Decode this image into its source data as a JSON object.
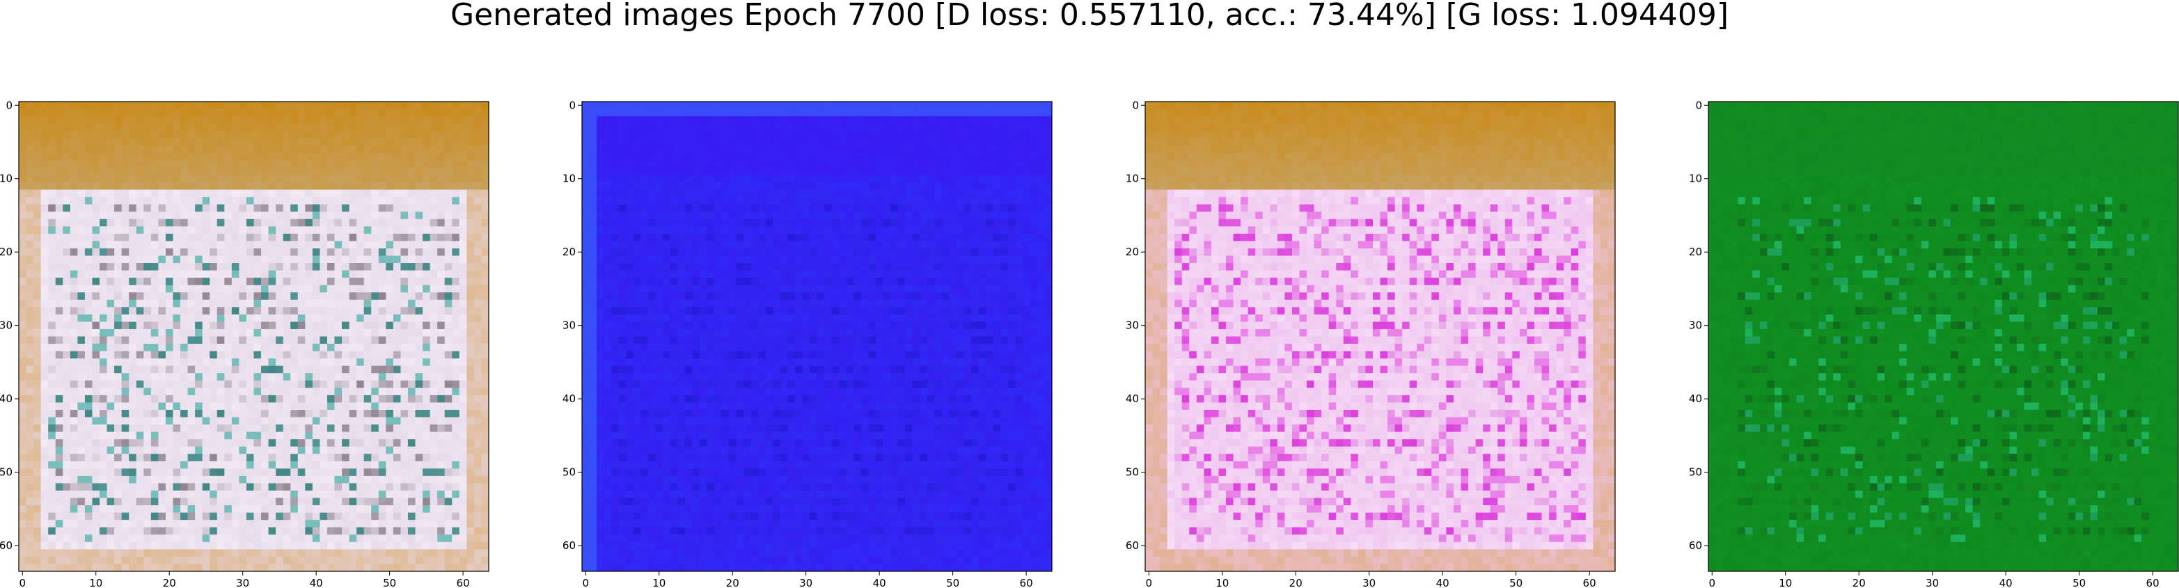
{
  "title": "Generated images Epoch 7700 [D loss: 0.557110, acc.: 73.44%] [G loss: 1.094409]",
  "panels": [
    {
      "name": "generated-image-1",
      "theme": "white-gold",
      "colors": {
        "top_band": "#c98a1a",
        "body": "#e8dcec",
        "edge": "#d9a35a",
        "dark": "#3a2a3a"
      },
      "x_ticks": [
        "0",
        "10",
        "20",
        "30",
        "40",
        "50",
        "60"
      ],
      "y_ticks": [
        "0",
        "10",
        "20",
        "30",
        "40",
        "50",
        "60"
      ]
    },
    {
      "name": "generated-image-2",
      "theme": "blue",
      "colors": {
        "top_band": "#3d18ee",
        "body": "#3420f0",
        "edge": "#2a3cff",
        "dark": "#2010c8"
      },
      "x_ticks": [
        "0",
        "10",
        "20",
        "30",
        "40",
        "50",
        "60"
      ],
      "y_ticks": [
        "0",
        "10",
        "20",
        "30",
        "40",
        "50",
        "60"
      ]
    },
    {
      "name": "generated-image-3",
      "theme": "pink-gold",
      "colors": {
        "top_band": "#c98a1a",
        "body": "#f0c8f0",
        "edge": "#d9a35a",
        "dark": "#d020d0"
      },
      "x_ticks": [
        "0",
        "10",
        "20",
        "30",
        "40",
        "50",
        "60"
      ],
      "y_ticks": [
        "0",
        "10",
        "20",
        "30",
        "40",
        "50",
        "60"
      ]
    },
    {
      "name": "generated-image-4",
      "theme": "green",
      "colors": {
        "top_band": "#118a22",
        "body": "#0e8a1e",
        "edge": "#1a9a2a",
        "dark": "#0a3a14"
      },
      "x_ticks": [
        "0",
        "10",
        "20",
        "30",
        "40",
        "50",
        "60"
      ],
      "y_ticks": [
        "0",
        "10",
        "20",
        "30",
        "40",
        "50",
        "60"
      ]
    }
  ]
}
